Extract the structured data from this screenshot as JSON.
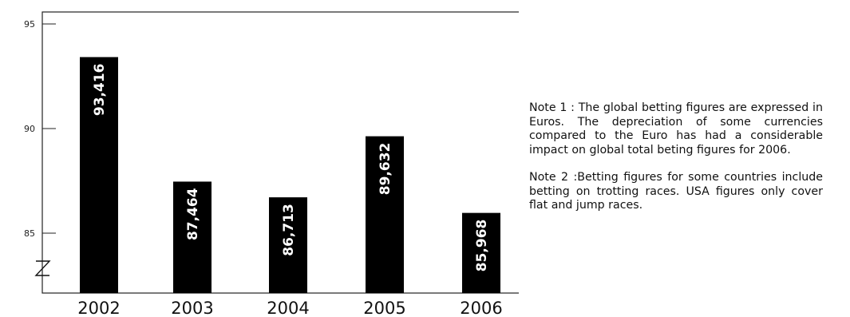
{
  "chart_data": {
    "type": "bar",
    "categories": [
      "2002",
      "2003",
      "2004",
      "2005",
      "2006"
    ],
    "values": [
      93416,
      87464,
      86713,
      89632,
      85968
    ],
    "value_labels": [
      "93,416",
      "87,464",
      "86,713",
      "89,632",
      "85,968"
    ],
    "yticks": [
      "95",
      "90",
      "85"
    ],
    "ylim": [
      83,
      96
    ],
    "axis_break": true,
    "grid": false,
    "legend": "none",
    "bar_color": "#000000",
    "title": "",
    "xlabel": "",
    "ylabel": ""
  },
  "notes": {
    "note1": "Note 1 : The global betting figures are expressed in Euros. The depreciation of some currencies compared to the Euro has had a considerable impact on global total beting figures for 2006.",
    "note2": "Note 2 :Betting figures for some countries include betting on trotting races. USA figures only cover flat and jump races."
  }
}
